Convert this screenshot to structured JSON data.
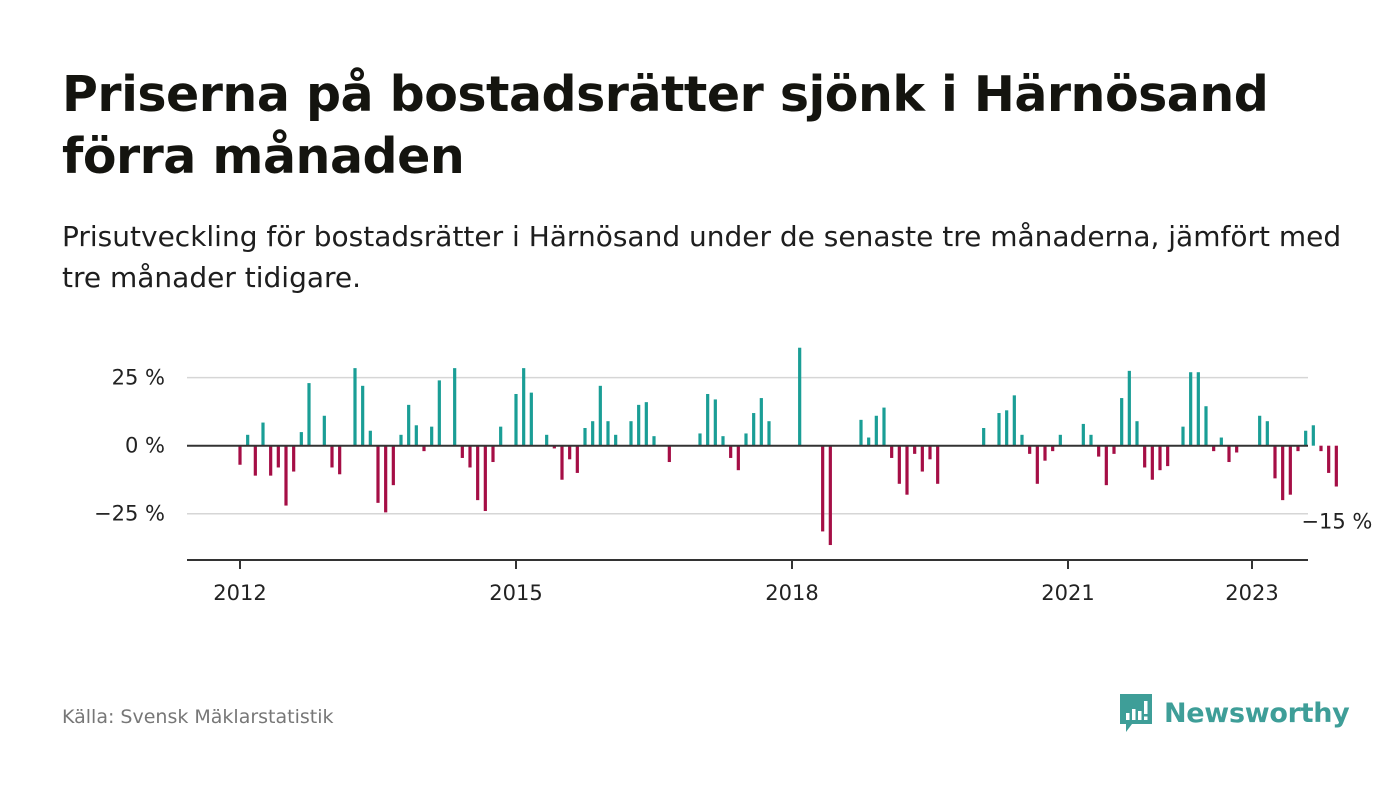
{
  "header": {
    "title": "Priserna på bostadsrätter sjönk i Härnösand förra månaden",
    "subtitle": "Prisutveckling för bostadsrätter i Härnösand under de senaste tre månaderna, jämfört med tre månader tidigare."
  },
  "footer": {
    "source": "Källa: Svensk Mäklarstatistik",
    "brand": "Newsworthy"
  },
  "colors": {
    "positive": "#1a9e96",
    "negative": "#a50e45",
    "brand": "#3e9e98"
  },
  "chart_data": {
    "type": "bar",
    "title": "Priserna på bostadsrätter sjönk i Härnösand förra månaden",
    "subtitle": "Prisutveckling för bostadsrätter i Härnösand under de senaste tre månaderna, jämfört med tre månader tidigare.",
    "xlabel": "",
    "ylabel": "",
    "ylim": [
      -42,
      37
    ],
    "yticks": [
      {
        "value": 25,
        "label": "25 %"
      },
      {
        "value": 0,
        "label": "0 %"
      },
      {
        "value": -25,
        "label": "−25 %"
      }
    ],
    "xticks": [
      {
        "value": 2012.0,
        "label": "2012"
      },
      {
        "value": 2015.0,
        "label": "2015"
      },
      {
        "value": 2018.0,
        "label": "2018"
      },
      {
        "value": 2021.0,
        "label": "2021"
      },
      {
        "value": 2023.0,
        "label": "2023"
      }
    ],
    "x_start": "2012-01",
    "annotation": {
      "text": "−15 %",
      "value": -15
    },
    "grid": true,
    "values": [
      -7,
      4,
      -11,
      8.5,
      -11,
      -8,
      -22,
      -9.5,
      5,
      23,
      0,
      11,
      -8,
      -10.5,
      0,
      28.5,
      22,
      5.5,
      -21,
      -24.5,
      -14.5,
      4,
      15,
      7.5,
      -2,
      7,
      24,
      0,
      28.5,
      -4.5,
      -8,
      -20,
      -24,
      -6,
      7,
      0,
      19,
      28.5,
      19.5,
      0,
      4,
      -1,
      -12.5,
      -5,
      -10,
      6.5,
      9,
      22,
      9,
      4,
      0,
      9,
      15,
      16,
      3.5,
      0,
      -6,
      0,
      0,
      0,
      4.5,
      19,
      17,
      3.5,
      -4.5,
      -9,
      4.5,
      12,
      17.5,
      9,
      0,
      0,
      0,
      36,
      0,
      0,
      -31.5,
      -36.5,
      0,
      0,
      0,
      9.5,
      3,
      11,
      14,
      -4.5,
      -14,
      -18,
      -3,
      -9.5,
      -5,
      -14,
      0,
      0,
      0,
      0,
      0,
      6.5,
      0,
      12,
      13,
      18.5,
      4,
      -3,
      -14,
      -5.5,
      -2,
      4,
      0,
      0,
      8,
      4,
      -4,
      -14.5,
      -3,
      17.5,
      27.5,
      9,
      -8,
      -12.5,
      -9,
      -7.5,
      0,
      7,
      27,
      27,
      14.5,
      -2,
      3,
      -6,
      -2.5,
      0,
      0,
      11,
      9,
      -12,
      -20,
      -18,
      -2,
      5.5,
      7.5,
      -2,
      -10,
      -15
    ]
  }
}
